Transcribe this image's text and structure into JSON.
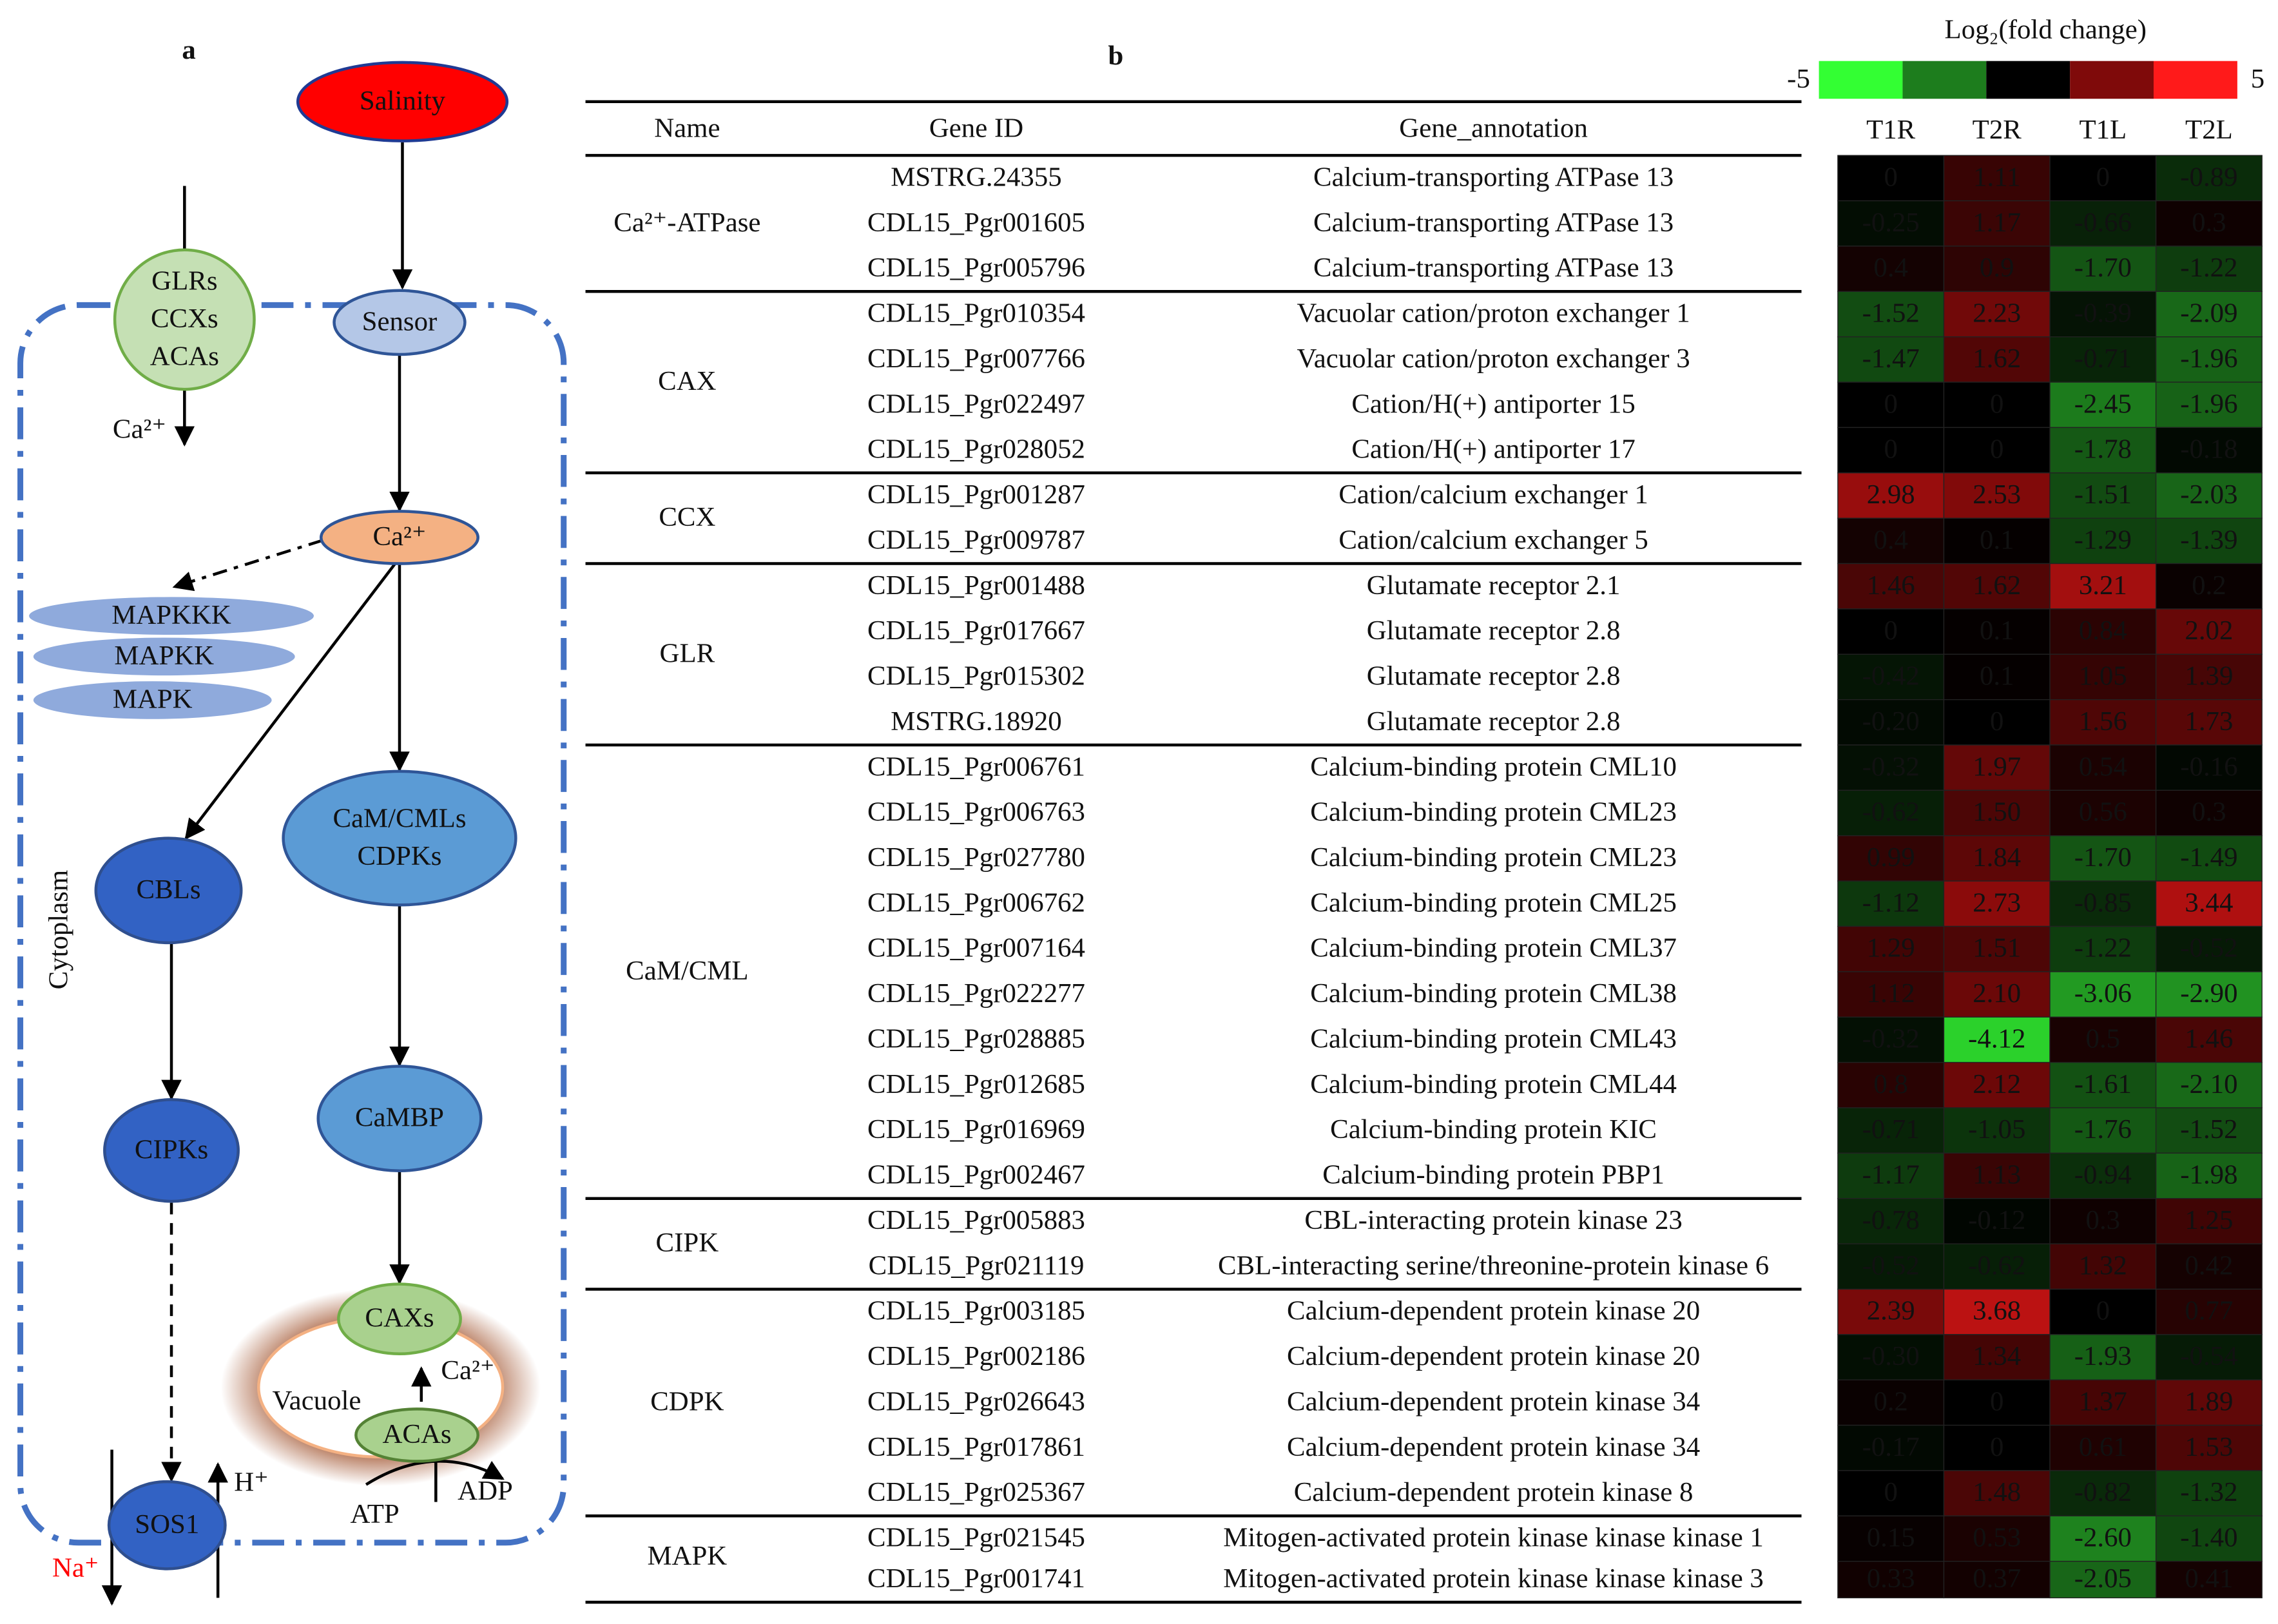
{
  "panel_a": {
    "label": "a",
    "nodes": [
      {
        "lines": [
          "Salinity"
        ]
      },
      {
        "lines": [
          "Sensor"
        ]
      },
      {
        "lines": [
          "GLRs",
          "CCXs",
          "ACAs"
        ]
      },
      {
        "lines": [
          "Ca²⁺"
        ]
      },
      {
        "lines": [
          "MAPKKK"
        ]
      },
      {
        "lines": [
          "MAPKK"
        ]
      },
      {
        "lines": [
          "MAPK"
        ]
      },
      {
        "lines": [
          "CBLs"
        ]
      },
      {
        "lines": [
          "CaM/CMLs",
          "CDPKs"
        ]
      },
      {
        "lines": [
          "CIPKs"
        ]
      },
      {
        "lines": [
          "CaMBP"
        ]
      },
      {
        "lines": [
          "CAXs"
        ]
      },
      {
        "lines": [
          "ACAs"
        ]
      },
      {
        "lines": [
          "SOS1"
        ]
      }
    ],
    "influx_ion": "Ca²⁺",
    "compartment": "Cytoplasm",
    "vacuole": "Vacuole",
    "vacuole_ion": "Ca²⁺",
    "atp": "ATP",
    "adp": "ADP",
    "proton": "H⁺",
    "sodium": "Na⁺"
  },
  "panel_b": {
    "label": "b",
    "columns": [
      "Name",
      "Gene ID",
      "Gene_annotation"
    ],
    "samples": [
      "T1R",
      "T2R",
      "T1L",
      "T2L"
    ],
    "colorbar": {
      "title": "Log₂(fold change)",
      "ticks": [
        -5,
        5
      ],
      "colors": [
        "#33ff33",
        "#1d7d1d",
        "#000000",
        "#7f0a0a",
        "#ff1a1a"
      ]
    },
    "groups": [
      {
        "name": "Ca²⁺-ATPase",
        "rows": [
          {
            "id": "MSTRG.24355",
            "annotation": "Calcium-transporting ATPase 13",
            "values": [
              0,
              1.11,
              0,
              -0.89
            ]
          },
          {
            "id": "CDL15_Pgr001605",
            "annotation": "Calcium-transporting ATPase 13",
            "values": [
              -0.25,
              1.17,
              -0.66,
              0.3
            ]
          },
          {
            "id": "CDL15_Pgr005796",
            "annotation": "Calcium-transporting ATPase 13",
            "values": [
              0.4,
              0.9,
              -1.7,
              -1.22
            ],
            "value_labels": [
              "0.4",
              "0.9",
              "-1.70",
              "-1.22"
            ]
          }
        ]
      },
      {
        "name": "CAX",
        "rows": [
          {
            "id": "CDL15_Pgr010354",
            "annotation": "Vacuolar cation/proton exchanger 1",
            "values": [
              -1.52,
              2.23,
              -0.39,
              -2.09
            ]
          },
          {
            "id": "CDL15_Pgr007766",
            "annotation": "Vacuolar cation/proton exchanger 3",
            "values": [
              -1.47,
              1.62,
              -0.71,
              -1.96
            ]
          },
          {
            "id": "CDL15_Pgr022497",
            "annotation": "Cation/H(+) antiporter 15",
            "values": [
              0,
              0,
              -2.45,
              -1.96
            ]
          },
          {
            "id": "CDL15_Pgr028052",
            "annotation": "Cation/H(+) antiporter 17",
            "values": [
              0,
              0,
              -1.78,
              -0.18
            ]
          }
        ]
      },
      {
        "name": "CCX",
        "rows": [
          {
            "id": "CDL15_Pgr001287",
            "annotation": "Cation/calcium exchanger 1",
            "values": [
              2.98,
              2.53,
              -1.51,
              -2.03
            ]
          },
          {
            "id": "CDL15_Pgr009787",
            "annotation": "Cation/calcium exchanger 5",
            "values": [
              0.4,
              0.1,
              -1.29,
              -1.39
            ]
          }
        ]
      },
      {
        "name": "GLR",
        "rows": [
          {
            "id": "CDL15_Pgr001488",
            "annotation": "Glutamate receptor 2.1",
            "values": [
              1.46,
              1.62,
              3.21,
              0.2
            ]
          },
          {
            "id": "CDL15_Pgr017667",
            "annotation": "Glutamate receptor 2.8",
            "values": [
              0,
              0.1,
              0.84,
              2.02
            ]
          },
          {
            "id": "CDL15_Pgr015302",
            "annotation": "Glutamate receptor 2.8",
            "values": [
              -0.42,
              0.1,
              1.05,
              1.39
            ]
          },
          {
            "id": "MSTRG.18920",
            "annotation": "Glutamate receptor 2.8",
            "values": [
              -0.2,
              0,
              1.56,
              1.73
            ],
            "value_labels": [
              "-0.20",
              "0",
              "1.56",
              "1.73"
            ]
          }
        ]
      },
      {
        "name": "CaM/CML",
        "rows": [
          {
            "id": "CDL15_Pgr006761",
            "annotation": "Calcium-binding protein CML10",
            "values": [
              -0.32,
              1.97,
              0.54,
              -0.16
            ]
          },
          {
            "id": "CDL15_Pgr006763",
            "annotation": "Calcium-binding protein CML23",
            "values": [
              -0.62,
              1.5,
              0.56,
              0.3
            ],
            "value_labels": [
              "-0.62",
              "1.50",
              "0.56",
              "0.3"
            ]
          },
          {
            "id": "CDL15_Pgr027780",
            "annotation": "Calcium-binding protein CML23",
            "values": [
              0.99,
              1.84,
              -1.7,
              -1.49
            ],
            "value_labels": [
              "0.99",
              "1.84",
              "-1.70",
              "-1.49"
            ]
          },
          {
            "id": "CDL15_Pgr006762",
            "annotation": "Calcium-binding protein CML25",
            "values": [
              -1.12,
              2.73,
              -0.85,
              3.44
            ]
          },
          {
            "id": "CDL15_Pgr007164",
            "annotation": "Calcium-binding protein CML37",
            "values": [
              1.29,
              1.51,
              -1.22,
              -0.52
            ]
          },
          {
            "id": "CDL15_Pgr022277",
            "annotation": "Calcium-binding protein CML38",
            "values": [
              1.12,
              2.1,
              -3.06,
              -2.9
            ],
            "value_labels": [
              "1.12",
              "2.10",
              "-3.06",
              "-2.90"
            ]
          },
          {
            "id": "CDL15_Pgr028885",
            "annotation": "Calcium-binding protein CML43",
            "values": [
              -0.32,
              -4.12,
              0.5,
              1.46
            ]
          },
          {
            "id": "CDL15_Pgr012685",
            "annotation": "Calcium-binding protein CML44",
            "values": [
              0.8,
              2.12,
              -1.61,
              -2.1
            ],
            "value_labels": [
              "0.8",
              "2.12",
              "-1.61",
              "-2.10"
            ]
          },
          {
            "id": "CDL15_Pgr016969",
            "annotation": "Calcium-binding protein KIC",
            "values": [
              -0.71,
              -1.05,
              -1.76,
              -1.52
            ]
          },
          {
            "id": "CDL15_Pgr002467",
            "annotation": "Calcium-binding protein PBP1",
            "values": [
              -1.17,
              1.13,
              -0.94,
              -1.98
            ]
          }
        ]
      },
      {
        "name": "CIPK",
        "rows": [
          {
            "id": "CDL15_Pgr005883",
            "annotation": "CBL-interacting protein kinase 23",
            "values": [
              -0.78,
              -0.12,
              0.3,
              1.25
            ]
          },
          {
            "id": "CDL15_Pgr021119",
            "annotation": "CBL-interacting serine/threonine-protein kinase 6",
            "values": [
              -0.52,
              -0.62,
              1.32,
              0.42
            ]
          }
        ]
      },
      {
        "name": "CDPK",
        "rows": [
          {
            "id": "CDL15_Pgr003185",
            "annotation": "Calcium-dependent protein kinase 20",
            "values": [
              2.39,
              3.68,
              0,
              0.77
            ]
          },
          {
            "id": "CDL15_Pgr002186",
            "annotation": "Calcium-dependent protein kinase 20",
            "values": [
              -0.3,
              1.34,
              -1.93,
              -0.54
            ],
            "value_labels": [
              "-0.30",
              "1.34",
              "-1.93",
              "-0.54"
            ]
          },
          {
            "id": "CDL15_Pgr026643",
            "annotation": "Calcium-dependent protein kinase 34",
            "values": [
              0.2,
              0,
              1.37,
              1.89
            ]
          },
          {
            "id": "CDL15_Pgr017861",
            "annotation": "Calcium-dependent protein kinase 34",
            "values": [
              -0.17,
              0,
              0.61,
              1.53
            ]
          },
          {
            "id": "CDL15_Pgr025367",
            "annotation": "Calcium-dependent protein kinase 8",
            "values": [
              0,
              1.48,
              -0.82,
              -1.32
            ]
          }
        ]
      },
      {
        "name": "MAPK",
        "rows": [
          {
            "id": "CDL15_Pgr021545",
            "annotation": "Mitogen-activated protein kinase kinase kinase 1",
            "values": [
              0.15,
              0.53,
              -2.6,
              -1.4
            ],
            "value_labels": [
              "0.15",
              "0.53",
              "-2.60",
              "-1.40"
            ]
          },
          {
            "id": "CDL15_Pgr001741",
            "annotation": "Mitogen-activated protein kinase kinase kinase 3",
            "values": [
              0.33,
              0.37,
              -2.05,
              0.41
            ]
          }
        ]
      }
    ]
  }
}
